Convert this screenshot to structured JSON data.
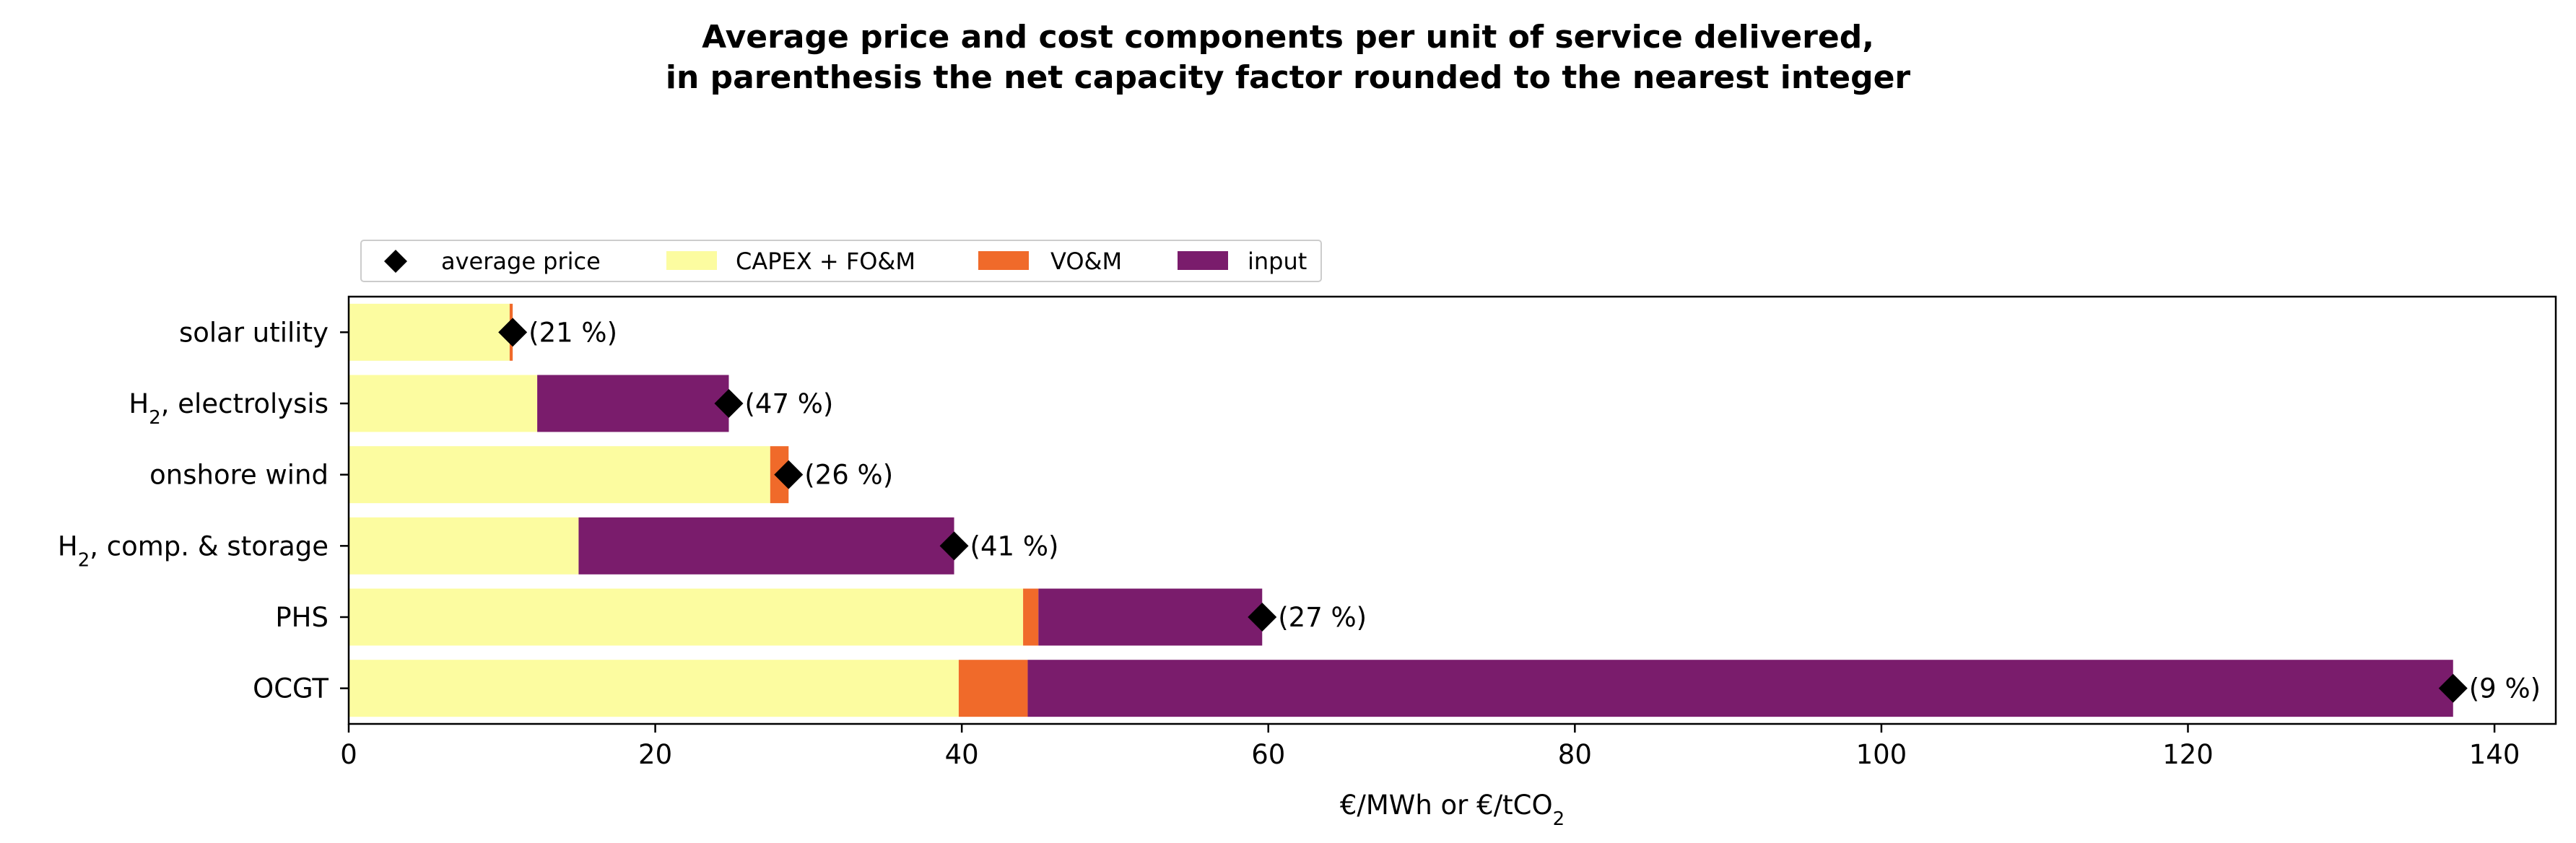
{
  "chart_data": {
    "type": "bar",
    "orientation": "horizontal",
    "stacked": true,
    "title_lines": [
      "Average price and cost components per unit of service delivered,",
      "in parenthesis the net capacity factor rounded to the nearest integer"
    ],
    "xlabel": "€/MWh or €/tCO",
    "xlabel_subscript": "2",
    "ylabel": "",
    "xlim": [
      0,
      144
    ],
    "xticks": [
      0,
      20,
      40,
      60,
      80,
      100,
      120,
      140
    ],
    "categories": [
      {
        "label": "solar utility",
        "sub": "",
        "suffix": ""
      },
      {
        "label": "H",
        "sub": "2",
        "suffix": ", electrolysis"
      },
      {
        "label": "onshore wind",
        "sub": "",
        "suffix": ""
      },
      {
        "label": "H",
        "sub": "2",
        "suffix": ", comp. & storage"
      },
      {
        "label": "PHS",
        "sub": "",
        "suffix": ""
      },
      {
        "label": "OCGT",
        "sub": "",
        "suffix": ""
      }
    ],
    "series": [
      {
        "name": "CAPEX + FO&M",
        "color": "#fcfca0",
        "values": [
          10.5,
          12.3,
          27.5,
          15.0,
          44.0,
          39.8
        ]
      },
      {
        "name": "VO&M",
        "color": "#f06a2a",
        "values": [
          0.2,
          0.0,
          1.2,
          0.0,
          1.0,
          4.5
        ]
      },
      {
        "name": "input",
        "color": "#7a1c6c",
        "values": [
          0.0,
          12.5,
          0.0,
          24.5,
          14.6,
          93.0
        ]
      }
    ],
    "average_price": {
      "name": "average price",
      "marker": "diamond",
      "color": "#000000",
      "values": [
        10.7,
        24.8,
        28.7,
        39.5,
        59.6,
        137.3
      ]
    },
    "annotations": [
      "(21 %)",
      "(47 %)",
      "(26 %)",
      "(41 %)",
      "(27 %)",
      "(9 %)"
    ],
    "legend": {
      "placement": "top-left, outside plot, single row",
      "entries": [
        "average price",
        "CAPEX + FO&M",
        "VO&M",
        "input"
      ]
    },
    "grid": false
  }
}
